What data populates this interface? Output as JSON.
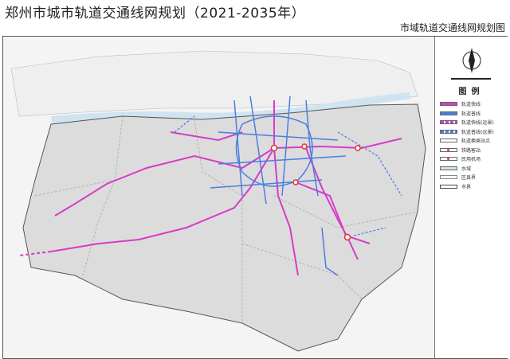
{
  "title": "郑州市城市轨道交通线网规划（2021-2035年）",
  "subtitle": "市域轨道交通线网规划图",
  "legend": {
    "title": "图例",
    "items": [
      {
        "label": "轨道快线",
        "color": "#d63cc8",
        "style": "solid"
      },
      {
        "label": "轨道普线",
        "color": "#4a7ee0",
        "style": "solid"
      },
      {
        "label": "轨道快线(远景)",
        "color": "#d63cc8",
        "style": "dashed"
      },
      {
        "label": "轨道普线(远景)",
        "color": "#4a7ee0",
        "style": "dashed"
      },
      {
        "label": "轨道换乘站点",
        "color": "#ffffff",
        "style": "circle"
      },
      {
        "label": "铁路客站",
        "color": "#e03030",
        "style": "dot"
      },
      {
        "label": "民用机场",
        "color": "#e03030",
        "style": "dot"
      },
      {
        "label": "水域",
        "color": "#cfe3f0",
        "style": "fill"
      },
      {
        "label": "区县界",
        "color": "#888888",
        "style": "border"
      },
      {
        "label": "市界",
        "color": "#444444",
        "style": "border"
      }
    ]
  },
  "compass_icon": "north-arrow-icon",
  "colors": {
    "express_line": "#d63cc8",
    "regular_line": "#4a7ee0",
    "land": "#dcdcdc",
    "north_area": "#efefef",
    "river": "#cfe3f0"
  }
}
